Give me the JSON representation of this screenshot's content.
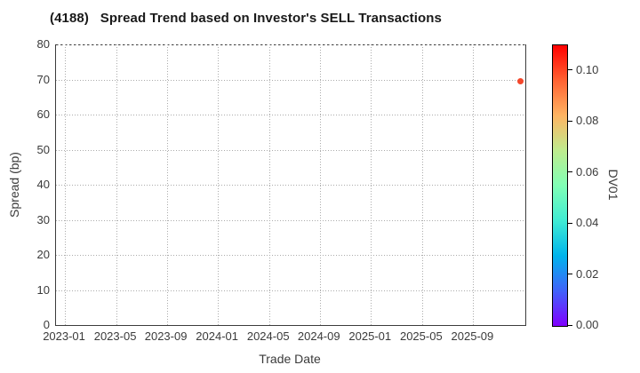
{
  "title": "(4188)   Spread Trend based on Investor's SELL Transactions",
  "chart_data": {
    "type": "scatter",
    "title": "(4188)   Spread Trend based on Investor's SELL Transactions",
    "xlabel": "Trade Date",
    "ylabel": "Spread (bp)",
    "ylim": [
      0,
      80
    ],
    "y_ticks": [
      0,
      10,
      20,
      30,
      40,
      50,
      60,
      70,
      80
    ],
    "x_tick_labels": [
      "2023-01",
      "2023-05",
      "2023-09",
      "2024-01",
      "2024-05",
      "2024-09",
      "2025-01",
      "2025-05",
      "2025-09"
    ],
    "x_tick_pos": [
      0.019,
      0.128,
      0.236,
      0.345,
      0.454,
      0.562,
      0.671,
      0.78,
      0.889
    ],
    "grid": true,
    "points": [
      {
        "date_est": "2025-12",
        "x_pos": 0.99,
        "spread_bp": 69.5,
        "dv01_est": 0.1,
        "color": "#f4472b"
      }
    ],
    "colorbar": {
      "label": "DV01",
      "ticks": [
        0.0,
        0.02,
        0.04,
        0.06,
        0.08,
        0.1
      ],
      "range": [
        0,
        0.11
      ],
      "colormap": "rainbow",
      "stops": [
        {
          "t": 0.0,
          "color": "#8000ff"
        },
        {
          "t": 0.125,
          "color": "#4062fa"
        },
        {
          "t": 0.25,
          "color": "#00b4ec"
        },
        {
          "t": 0.375,
          "color": "#40ecd4"
        },
        {
          "t": 0.5,
          "color": "#80ffb5"
        },
        {
          "t": 0.625,
          "color": "#bfec8e"
        },
        {
          "t": 0.75,
          "color": "#ffb462"
        },
        {
          "t": 0.875,
          "color": "#ff6232"
        },
        {
          "t": 1.0,
          "color": "#ff0000"
        }
      ]
    }
  },
  "colors": {
    "background": "#ffffff",
    "title": "#1a1a1a",
    "tick_label": "#3a3a3a",
    "gridline": "#ababab",
    "spine": "#3c3c3c",
    "point": "#f4472b"
  }
}
